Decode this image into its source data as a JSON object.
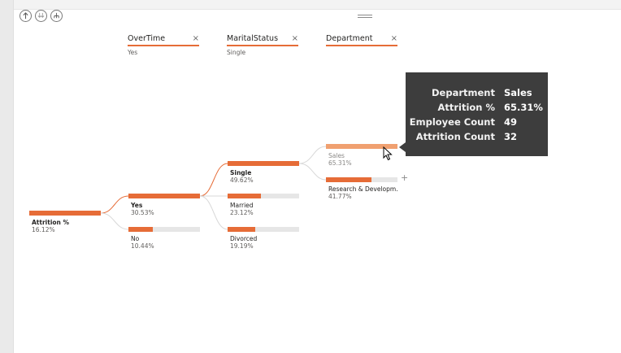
{
  "levels": [
    {
      "title": "OverTime",
      "selected": "Yes"
    },
    {
      "title": "MaritalStatus",
      "selected": "Single"
    },
    {
      "title": "Department",
      "selected": ""
    }
  ],
  "close_glyph": "×",
  "root": {
    "label": "Attrition %",
    "value": "16.12%",
    "fill_pct": 100
  },
  "overtime_nodes": [
    {
      "label": "Yes",
      "value": "30.53%",
      "fill_pct": 100
    },
    {
      "label": "No",
      "value": "10.44%",
      "fill_pct": 34
    }
  ],
  "marital_nodes": [
    {
      "label": "Single",
      "value": "49.62%",
      "fill_pct": 100
    },
    {
      "label": "Married",
      "value": "23.12%",
      "fill_pct": 47
    },
    {
      "label": "Divorced",
      "value": "19.19%",
      "fill_pct": 39
    }
  ],
  "department_nodes": [
    {
      "label": "Sales",
      "value": "65.31%",
      "fill_pct": 100
    },
    {
      "label": "Research & Developm...",
      "value": "41.77%",
      "fill_pct": 64
    }
  ],
  "expand_glyph": "+",
  "tooltip": {
    "rows": [
      {
        "key": "Department",
        "value": "Sales"
      },
      {
        "key": "Attrition %",
        "value": "65.31%"
      },
      {
        "key": "Employee Count",
        "value": "49"
      },
      {
        "key": "Attrition Count",
        "value": "32"
      }
    ]
  },
  "colors": {
    "accent": "#e66c37",
    "accent_light": "#f0a070",
    "tooltip_bg": "#3d3d3d",
    "bar_bg": "#e6e6e6"
  },
  "icons": [
    "drill-up-icon",
    "drill-down-icon",
    "expand-all-icon",
    "drag-grip-icon",
    "close-icon",
    "cursor-icon"
  ]
}
